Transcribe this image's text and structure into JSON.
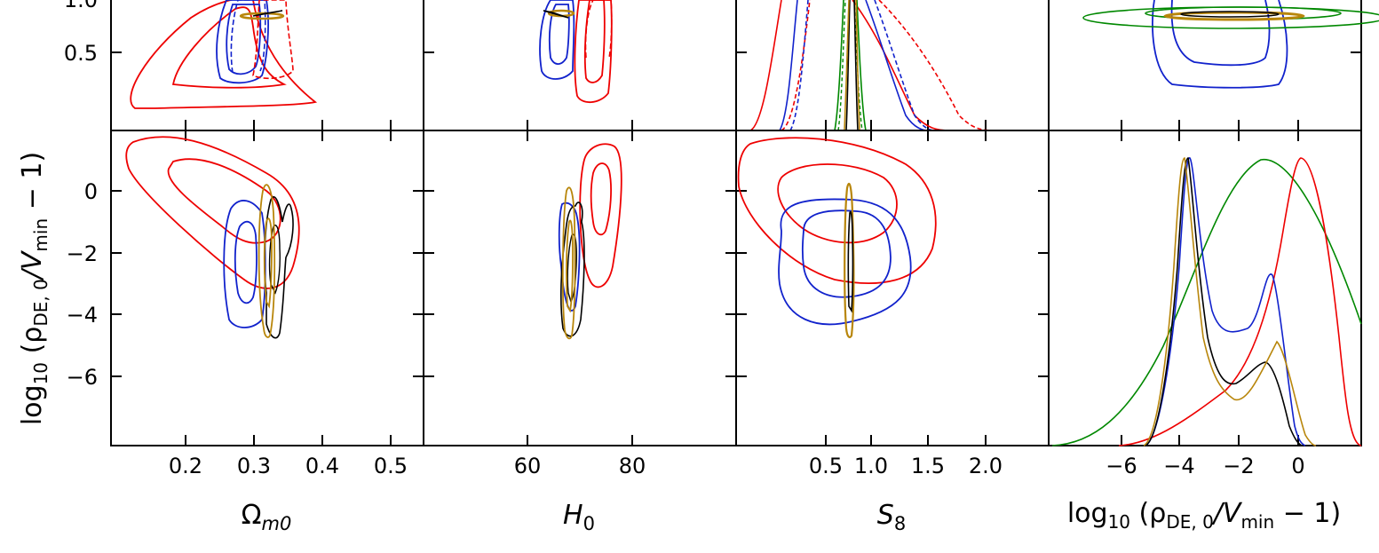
{
  "figure": {
    "ylabel_outer_top": "1.0",
    "ylabel_left_bottom": "log10 (ρDE,0/Vmin − 1)"
  },
  "chart_data": [
    {
      "type": "corner-contour",
      "panel": "Omega_m0 vs ? (top row, cut)",
      "y_ticks": [
        "1.0",
        "0.5"
      ],
      "x_ticks": [],
      "contours_colors": [
        "red",
        "blue",
        "black",
        "goldenrod"
      ]
    },
    {
      "type": "corner-contour",
      "panel": "H0 vs ? (top row, cut)",
      "x_ticks": [],
      "y_ticks": []
    },
    {
      "type": "line",
      "panel": "S8 marginal (top row, cut)",
      "x_ticks": [],
      "y_ticks": []
    },
    {
      "type": "corner-contour",
      "panel": "log10 rho vs ? (top row, cut)",
      "x_ticks": [],
      "y_ticks": []
    },
    {
      "type": "corner-contour",
      "panel": "Omega_m0 vs log10(rho)",
      "xlabel": "Ωm0",
      "ylabel": "log10 (ρDE,0/Vmin − 1)",
      "x_ticks": [
        "0.2",
        "0.3",
        "0.4",
        "0.5"
      ],
      "y_ticks": [
        "0",
        "−2",
        "−4",
        "−6"
      ],
      "xlim": [
        0.1,
        0.55
      ],
      "ylim": [
        -8.2,
        1.9
      ]
    },
    {
      "type": "corner-contour",
      "panel": "H0 vs log10(rho)",
      "xlabel": "H0",
      "x_ticks": [
        "60",
        "80"
      ],
      "xlim": [
        40,
        100
      ],
      "ylim": [
        -8.2,
        1.9
      ]
    },
    {
      "type": "corner-contour",
      "panel": "S8 vs log10(rho)",
      "xlabel": "S8",
      "x_ticks": [
        "0.5",
        "1.0",
        "1.5",
        "2.0"
      ],
      "xlim": [
        0.0,
        2.35
      ],
      "ylim": [
        -8.2,
        1.9
      ]
    },
    {
      "type": "line",
      "panel": "log10(rho) marginal",
      "xlabel": "log10 (ρDE,0/Vmin − 1)",
      "x_ticks": [
        "−6",
        "−4",
        "−2",
        "0"
      ],
      "xlim": [
        -8.2,
        1.9
      ],
      "series": [
        {
          "color": "red",
          "peak_x": -0.1
        },
        {
          "color": "green",
          "peak_x": -1.2
        },
        {
          "color": "blue",
          "peak_x": -3.0
        },
        {
          "color": "black",
          "peak_x": -3.1
        },
        {
          "color": "goldenrod",
          "peak_x": -3.2
        }
      ]
    }
  ],
  "axis_text": {
    "top_y_1": "1.0",
    "top_y_05": "0.5",
    "b1_y0": "0",
    "b1_y2": "−2",
    "b1_y4": "−4",
    "b1_y6": "−6",
    "b1_x02": "0.2",
    "b1_x03": "0.3",
    "b1_x04": "0.4",
    "b1_x05": "0.5",
    "b2_x60": "60",
    "b2_x80": "80",
    "b3_x05": "0.5",
    "b3_x10": "1.0",
    "b3_x15": "1.5",
    "b3_x20": "2.0",
    "b4_xm6": "−6",
    "b4_xm4": "−4",
    "b4_xm2": "−2",
    "b4_x0": "0"
  },
  "labels": {
    "omega": "Ω",
    "omega_sub": "m0",
    "h": "H",
    "h_sub": "0",
    "s": "S",
    "s_sub": "8",
    "log": "log",
    "log_sub": "10",
    "open": " (ρ",
    "de_sub": "DE, 0",
    "slash": "/V",
    "min_sub": "min",
    "close": " − 1)"
  }
}
